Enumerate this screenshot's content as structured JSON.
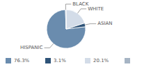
{
  "chart_data": {
    "type": "pie",
    "categories": [
      "HISPANIC",
      "ASIAN",
      "WHITE",
      "BLACK"
    ],
    "values": [
      76.3,
      3.1,
      20.1,
      0.5
    ],
    "value_labels": [
      "76.3%",
      "3.1%",
      "20.1%",
      null
    ],
    "colors": [
      "#6a8cae",
      "#2e5378",
      "#d3dce8",
      "#a6b4c4"
    ],
    "legend": "bottom"
  }
}
